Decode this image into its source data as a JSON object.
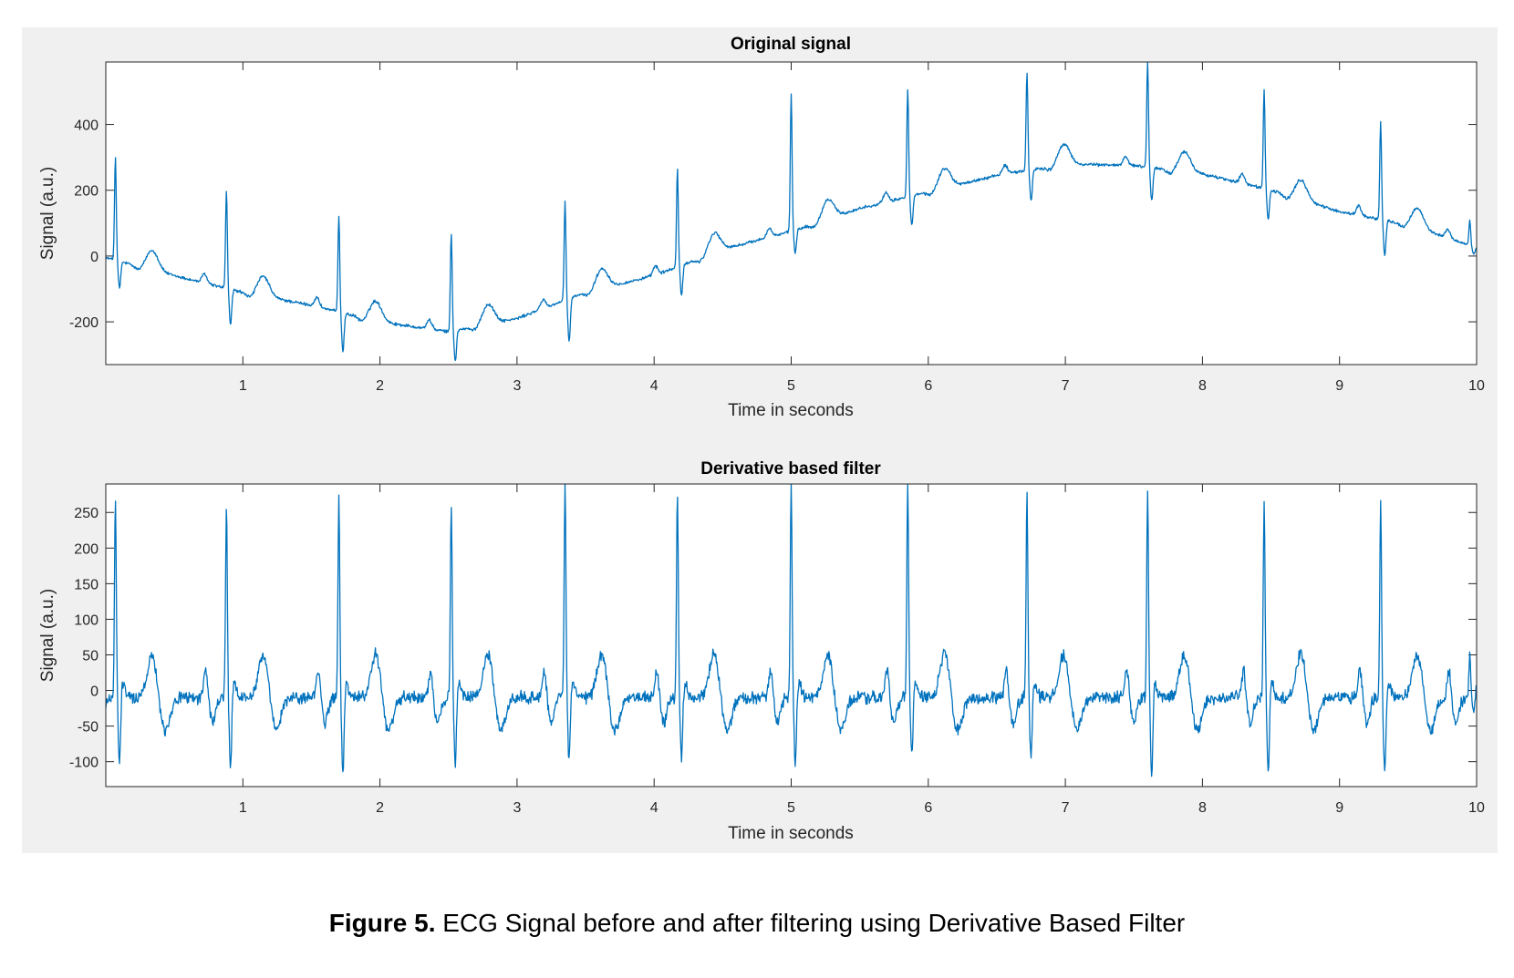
{
  "caption": {
    "label": "Figure 5.",
    "text": " ECG Signal before and after filtering using Derivative Based Filter"
  },
  "colors": {
    "line": "#0072bd",
    "panel_background": "#f0f0f0",
    "axes_background": "#ffffff",
    "axes_border": "#262626"
  },
  "chart_data": [
    {
      "type": "line",
      "title": "Original signal",
      "xlabel": "Time in seconds",
      "ylabel": "Signal (a.u.)",
      "xlim": [
        0,
        10
      ],
      "ylim": [
        -330,
        590
      ],
      "xticks": [
        1,
        2,
        3,
        4,
        5,
        6,
        7,
        8,
        9,
        10
      ],
      "xtick_labels": [
        "1",
        "2",
        "3",
        "4",
        "5",
        "6",
        "7",
        "8",
        "9",
        "10"
      ],
      "yticks": [
        -200,
        0,
        200,
        400
      ],
      "ytick_labels": [
        "-200",
        "0",
        "200",
        "400"
      ],
      "grid": false,
      "series": [
        {
          "color": "#0072bd",
          "beat_times": [
            0.07,
            0.88,
            1.7,
            2.52,
            3.35,
            4.17,
            5.0,
            5.85,
            6.72,
            7.6,
            8.45,
            9.3,
            9.95
          ],
          "r_peak_values": [
            300,
            200,
            125,
            70,
            165,
            265,
            490,
            510,
            560,
            590,
            505,
            405,
            110
          ],
          "s_trough_values": [
            -95,
            -205,
            -285,
            -320,
            -265,
            -125,
            5,
            90,
            165,
            170,
            115,
            5,
            10
          ],
          "baseline": {
            "x": [
              0,
              0.5,
              1,
              1.5,
              2,
              2.5,
              3,
              3.5,
              4,
              4.5,
              5,
              5.5,
              6,
              6.5,
              7,
              7.5,
              8,
              8.5,
              9,
              9.5,
              10
            ],
            "y": [
              -5,
              -60,
              -110,
              -150,
              -200,
              -230,
              -190,
              -110,
              -60,
              20,
              75,
              145,
              195,
              245,
              280,
              275,
              250,
              200,
              135,
              95,
              25
            ]
          }
        }
      ]
    },
    {
      "type": "line",
      "title": "Derivative based filter",
      "xlabel": "Time in seconds",
      "ylabel": "Signal (a.u.)",
      "xlim": [
        0,
        10
      ],
      "ylim": [
        -135,
        290
      ],
      "xticks": [
        1,
        2,
        3,
        4,
        5,
        6,
        7,
        8,
        9,
        10
      ],
      "xtick_labels": [
        "1",
        "2",
        "3",
        "4",
        "5",
        "6",
        "7",
        "8",
        "9",
        "10"
      ],
      "yticks": [
        -100,
        -50,
        0,
        50,
        100,
        150,
        200,
        250
      ],
      "ytick_labels": [
        "-100",
        "-50",
        "0",
        "50",
        "100",
        "150",
        "200",
        "250"
      ],
      "grid": false,
      "series": [
        {
          "color": "#0072bd",
          "beat_times": [
            0.07,
            0.88,
            1.7,
            2.52,
            3.35,
            4.17,
            5.0,
            5.85,
            6.72,
            7.6,
            8.45,
            9.3,
            9.95
          ],
          "r_peak_values": [
            268,
            262,
            268,
            255,
            290,
            280,
            290,
            290,
            280,
            285,
            265,
            260,
            45
          ],
          "s_trough_values": [
            -115,
            -125,
            -130,
            -115,
            -110,
            -110,
            -115,
            -105,
            -105,
            -135,
            -130,
            -130,
            -45
          ],
          "baseline": {
            "x": [
              0,
              10
            ],
            "y": [
              -10,
              -10
            ]
          }
        }
      ]
    }
  ]
}
